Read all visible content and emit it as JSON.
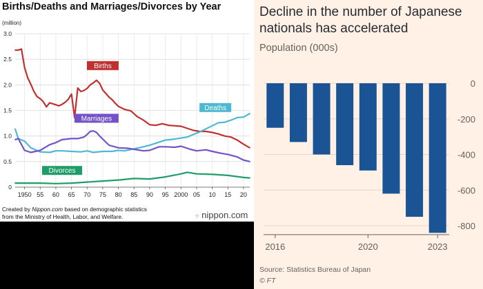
{
  "left_panel": {
    "title": "Births/Deaths and Marriages/Divorces by Year",
    "unit": "(million)",
    "credit_line1_a": "Created by ",
    "credit_line1_b": "Nippon.com",
    "credit_line1_c": " based on demographic statistics",
    "credit_line2": "from the Ministry of Health, Labor, and Welfare.",
    "brand": "nippon.com"
  },
  "right_panel": {
    "title": "Decline in the number of Japanese nationals has accelerated",
    "subtitle": "Population (000s)",
    "source": "Source: Statistics Bureau of Japan",
    "copyright": "© FT"
  },
  "colors": {
    "births": "#c0302e",
    "deaths": "#4db8d1",
    "marriages": "#7352c7",
    "divorces": "#1f9d68",
    "ft_bar": "#1a5494",
    "ft_bg": "#fff1e5"
  },
  "chart_data": [
    {
      "type": "line",
      "title": "Births/Deaths and Marriages/Divorces by Year",
      "ylabel": "(million)",
      "xlim": [
        1947,
        2022
      ],
      "ylim": [
        0,
        3.0
      ],
      "yticks": [
        0,
        0.5,
        1.0,
        1.5,
        2.0,
        2.5,
        3.0
      ],
      "ytick_labels": [
        "0",
        "0.5",
        "1.0",
        "1.5",
        "2.0",
        "2.5",
        "3.0"
      ],
      "xticks": [
        1950,
        1955,
        1960,
        1965,
        1970,
        1975,
        1980,
        1985,
        1990,
        1995,
        2000,
        2005,
        2010,
        2015,
        2020
      ],
      "xtick_labels": [
        "1950",
        "55",
        "60",
        "65",
        "70",
        "75",
        "80",
        "85",
        "90",
        "95",
        "2000",
        "05",
        "10",
        "15",
        "20"
      ],
      "grid": true,
      "series": [
        {
          "name": "Births",
          "label_pos": [
            1975,
            2.37
          ],
          "x": [
            1947,
            1948,
            1949,
            1950,
            1951,
            1952,
            1953,
            1954,
            1955,
            1956,
            1957,
            1958,
            1959,
            1960,
            1961,
            1962,
            1963,
            1964,
            1965,
            1966,
            1967,
            1968,
            1969,
            1970,
            1971,
            1972,
            1973,
            1974,
            1975,
            1976,
            1977,
            1978,
            1979,
            1980,
            1982,
            1984,
            1986,
            1988,
            1990,
            1992,
            1994,
            1996,
            1998,
            2000,
            2002,
            2004,
            2006,
            2008,
            2010,
            2012,
            2014,
            2016,
            2018,
            2020,
            2022
          ],
          "values": [
            2.68,
            2.68,
            2.7,
            2.34,
            2.14,
            2.01,
            1.87,
            1.77,
            1.73,
            1.67,
            1.57,
            1.65,
            1.63,
            1.61,
            1.59,
            1.62,
            1.66,
            1.72,
            1.82,
            1.36,
            1.94,
            1.87,
            1.89,
            1.93,
            2.0,
            2.04,
            2.09,
            2.03,
            1.9,
            1.83,
            1.76,
            1.71,
            1.64,
            1.58,
            1.52,
            1.49,
            1.38,
            1.31,
            1.22,
            1.21,
            1.24,
            1.21,
            1.2,
            1.19,
            1.15,
            1.11,
            1.09,
            1.09,
            1.07,
            1.04,
            1.0,
            0.98,
            0.92,
            0.84,
            0.77
          ]
        },
        {
          "name": "Deaths",
          "label_pos": [
            2011,
            1.55
          ],
          "x": [
            1947,
            1948,
            1950,
            1952,
            1955,
            1958,
            1960,
            1962,
            1965,
            1968,
            1970,
            1972,
            1975,
            1978,
            1980,
            1982,
            1985,
            1988,
            1990,
            1992,
            1995,
            1998,
            2000,
            2002,
            2004,
            2006,
            2008,
            2010,
            2012,
            2014,
            2016,
            2018,
            2020,
            2022
          ],
          "values": [
            1.14,
            0.95,
            0.9,
            0.77,
            0.69,
            0.68,
            0.71,
            0.71,
            0.7,
            0.69,
            0.71,
            0.68,
            0.7,
            0.7,
            0.72,
            0.71,
            0.75,
            0.79,
            0.82,
            0.86,
            0.92,
            0.94,
            0.96,
            0.98,
            1.03,
            1.08,
            1.14,
            1.2,
            1.26,
            1.27,
            1.31,
            1.36,
            1.37,
            1.44
          ]
        },
        {
          "name": "Marriages",
          "label_pos": [
            1973,
            1.34
          ],
          "x": [
            1947,
            1948,
            1950,
            1952,
            1955,
            1958,
            1960,
            1962,
            1965,
            1967,
            1969,
            1970,
            1971,
            1972,
            1973,
            1974,
            1975,
            1977,
            1980,
            1983,
            1985,
            1988,
            1990,
            1993,
            1995,
            1998,
            2000,
            2003,
            2005,
            2008,
            2010,
            2013,
            2015,
            2018,
            2020,
            2022
          ],
          "values": [
            0.93,
            0.95,
            0.72,
            0.68,
            0.72,
            0.83,
            0.87,
            0.93,
            0.95,
            0.95,
            0.98,
            1.03,
            1.09,
            1.1,
            1.07,
            1.0,
            0.94,
            0.82,
            0.77,
            0.76,
            0.74,
            0.71,
            0.72,
            0.79,
            0.79,
            0.78,
            0.8,
            0.74,
            0.71,
            0.73,
            0.7,
            0.66,
            0.64,
            0.59,
            0.53,
            0.5
          ]
        },
        {
          "name": "Divorces",
          "label_pos": [
            1962,
            0.32
          ],
          "x": [
            1947,
            1950,
            1955,
            1960,
            1965,
            1970,
            1975,
            1980,
            1985,
            1990,
            1995,
            2000,
            2002,
            2005,
            2010,
            2015,
            2020,
            2022
          ],
          "values": [
            0.08,
            0.08,
            0.08,
            0.07,
            0.08,
            0.1,
            0.12,
            0.14,
            0.17,
            0.16,
            0.2,
            0.26,
            0.29,
            0.26,
            0.25,
            0.23,
            0.19,
            0.18
          ]
        }
      ]
    },
    {
      "type": "bar",
      "title": "Decline in the number of Japanese nationals has accelerated",
      "ylabel": "Population (000s)",
      "categories": [
        "2016",
        "2017",
        "2018",
        "2019",
        "2020",
        "2021",
        "2022",
        "2023"
      ],
      "values": [
        -250,
        -330,
        -400,
        -460,
        -490,
        -620,
        -750,
        -840
      ],
      "ylim": [
        -850,
        0
      ],
      "yticks": [
        0,
        -200,
        -400,
        -600,
        -800
      ],
      "ytick_labels": [
        "0",
        "-200",
        "-400",
        "-600",
        "-800"
      ],
      "xtick_labels": [
        "2016",
        "2020",
        "2023"
      ],
      "xtick_categories": [
        "2016",
        "2020",
        "2023"
      ],
      "grid": true
    }
  ]
}
